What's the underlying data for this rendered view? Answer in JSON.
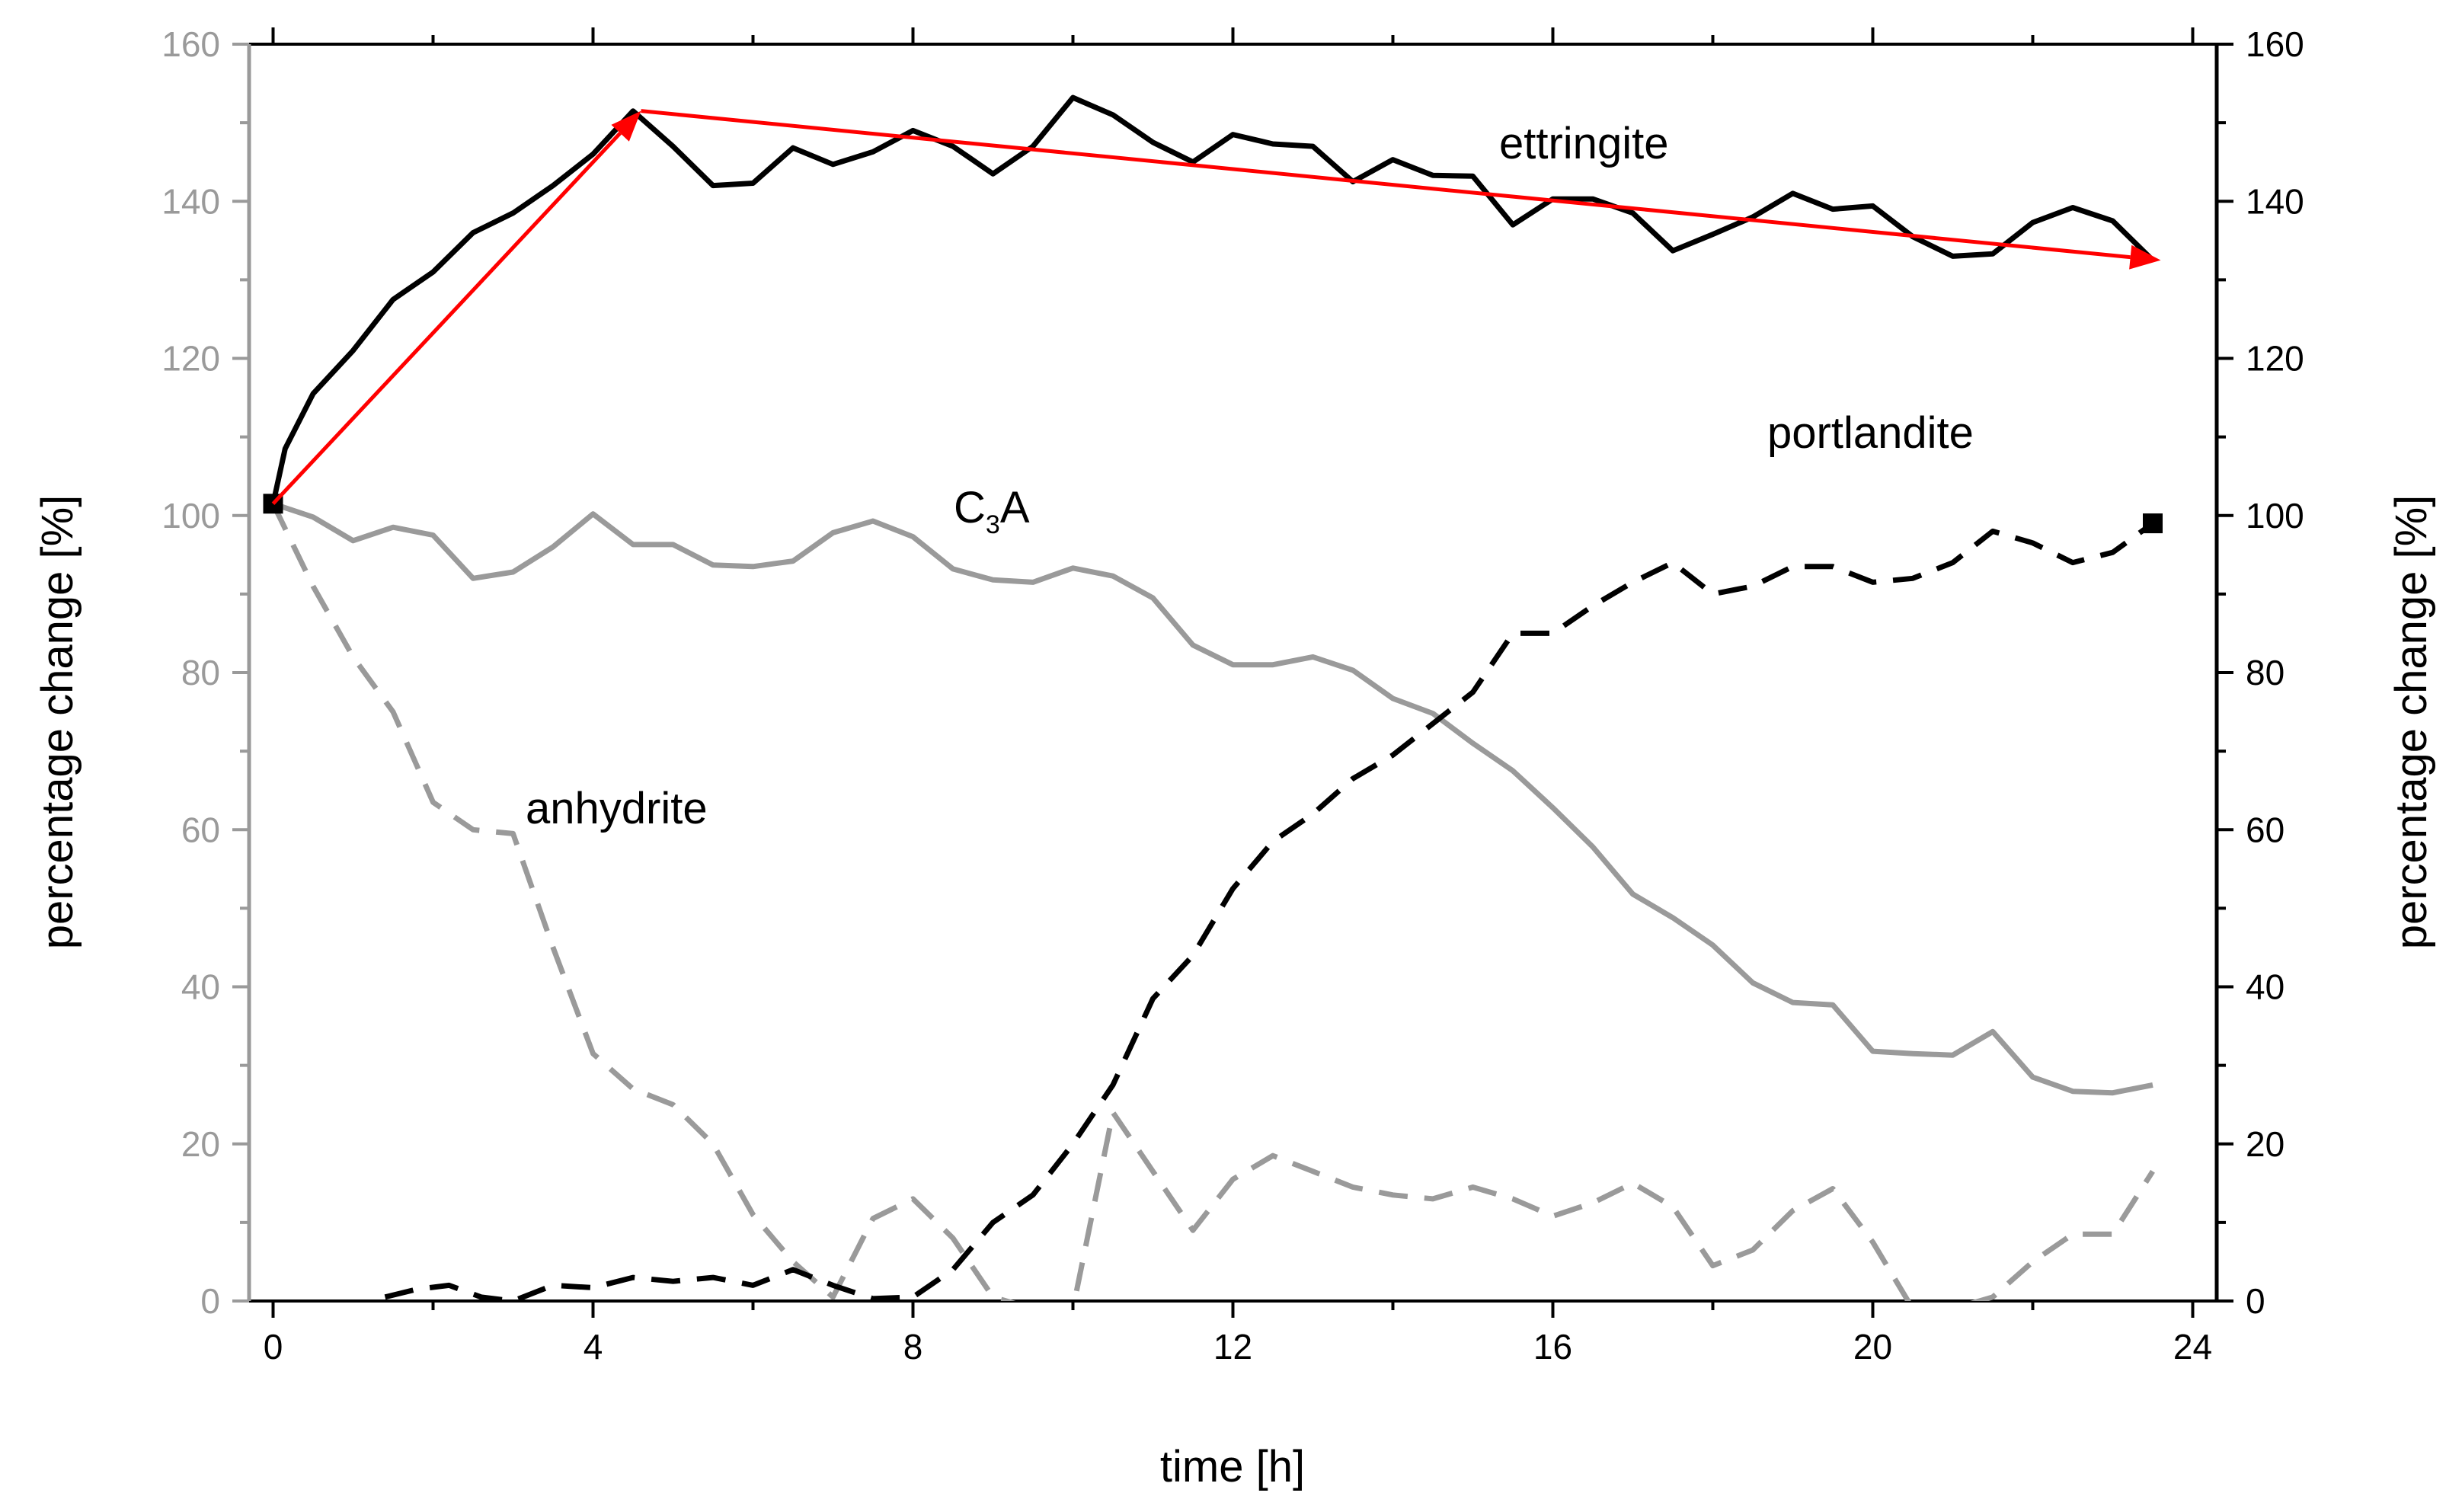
{
  "chart_data": {
    "type": "line",
    "title": "",
    "xlabel": "time [h]",
    "ylabel_left": "percentage change [%]",
    "ylabel_right": "percentage change [%]",
    "xlim": [
      -0.3,
      24.3
    ],
    "ylim_left": [
      0,
      160
    ],
    "ylim_right": [
      0,
      160
    ],
    "x_ticks": [
      0,
      4,
      8,
      12,
      16,
      20,
      24
    ],
    "x_tick_labels": [
      "0",
      "4",
      "8",
      "12",
      "16",
      "20",
      "24"
    ],
    "y_ticks_left": [
      0,
      20,
      40,
      60,
      80,
      100,
      120,
      140,
      160
    ],
    "y_tick_labels_left": [
      "0",
      "20",
      "40",
      "60",
      "80",
      "100",
      "120",
      "140",
      "160"
    ],
    "y_ticks_right": [
      0,
      20,
      40,
      60,
      80,
      100,
      120,
      140,
      160
    ],
    "y_tick_labels_right": [
      "0",
      "20",
      "40",
      "60",
      "80",
      "100",
      "120",
      "140",
      "160"
    ],
    "grid": false,
    "colors": {
      "left_axis": "#9a9a9a",
      "right_axis": "#000000",
      "ettringite": "#000000",
      "c3a": "#9a9a9a",
      "anhydrite": "#9a9a9a",
      "portlandite": "#000000",
      "trend_arrow": "#ff0000"
    },
    "series": [
      {
        "name": "ettringite",
        "axis": "right",
        "style": "solid",
        "x": [
          0,
          0.15,
          0.5,
          1,
          1.5,
          2,
          2.5,
          3,
          3.5,
          4,
          4.5,
          5,
          5.5,
          6,
          6.5,
          7,
          7.5,
          8,
          8.5,
          9,
          9.5,
          10,
          10.5,
          11,
          11.5,
          12,
          12.5,
          13,
          13.5,
          14,
          14.5,
          15,
          15.5,
          16,
          16.5,
          17,
          17.5,
          18,
          18.5,
          19,
          19.5,
          20,
          20.5,
          21,
          21.5,
          22,
          22.5,
          23,
          23.5
        ],
        "values": [
          101.5,
          108.5,
          115.5,
          121,
          127.5,
          131,
          136,
          138.5,
          142,
          146,
          151.5,
          147,
          142,
          142.3,
          146.8,
          144.7,
          146.3,
          149,
          147,
          143.5,
          147,
          153.2,
          151,
          147.5,
          145,
          148.5,
          147.3,
          147,
          142.5,
          145.3,
          143.3,
          143.2,
          137,
          140.3,
          140.3,
          138.5,
          133.7,
          135.8,
          138,
          141,
          139,
          139.4,
          135.5,
          133,
          133.3,
          137.3,
          139.2,
          137.5,
          132.5
        ]
      },
      {
        "name": "C3A",
        "label_main": "C",
        "label_sub": "3",
        "label_tail": "A",
        "axis": "left",
        "style": "solid",
        "x": [
          0,
          0.5,
          1,
          1.5,
          2,
          2.5,
          3,
          3.5,
          4,
          4.5,
          5,
          5.5,
          6,
          6.5,
          7,
          7.5,
          8,
          8.5,
          9,
          9.5,
          10,
          10.5,
          11,
          11.5,
          12,
          12.5,
          13,
          13.5,
          14,
          14.5,
          15,
          15.5,
          16,
          16.5,
          17,
          17.5,
          18,
          18.5,
          19,
          19.5,
          20,
          20.5,
          21,
          21.5,
          22,
          22.5,
          23,
          23.5
        ],
        "values": [
          101.5,
          99.8,
          96.8,
          98.5,
          97.5,
          92,
          92.8,
          96,
          100.2,
          96.3,
          96.3,
          93.7,
          93.5,
          94.2,
          97.8,
          99.3,
          97.3,
          93.2,
          91.8,
          91.5,
          93.3,
          92.3,
          89.5,
          83.5,
          81,
          81,
          82,
          80.3,
          76.7,
          74.8,
          71,
          67.5,
          62.8,
          57.8,
          51.8,
          48.8,
          45.3,
          40.5,
          38,
          37.7,
          31.8,
          31.5,
          31.3,
          34.3,
          28.5,
          26.7,
          26.5,
          27.5
        ]
      },
      {
        "name": "anhydrite",
        "axis": "left",
        "style": "dashed",
        "x": [
          0,
          0.5,
          1,
          1.5,
          2,
          2.5,
          3,
          3.5,
          4,
          4.5,
          5,
          5.5,
          6,
          6.5,
          7,
          7.5,
          8,
          8.5,
          9,
          9.5,
          10,
          10.5,
          11,
          11.5,
          12,
          12.5,
          13,
          13.5,
          14,
          14.5,
          15,
          15.5,
          16,
          16.5,
          17,
          17.5,
          18,
          18.5,
          19,
          19.5,
          20,
          20.5,
          21,
          21.5,
          22,
          22.5,
          23,
          23.5
        ],
        "values": [
          101.5,
          91,
          82,
          75,
          63.5,
          60,
          59.5,
          45,
          31.5,
          27,
          25,
          20,
          11,
          5,
          0.5,
          10.5,
          13,
          8,
          0.5,
          -1,
          -1,
          24,
          16.5,
          9,
          15.5,
          18.5,
          16.5,
          14.5,
          13.5,
          13,
          14.5,
          13,
          10.8,
          12.5,
          15,
          12,
          4.5,
          6.5,
          11.5,
          14.3,
          7.5,
          -1,
          -1,
          0.5,
          5,
          8.5,
          8.5,
          16.5
        ]
      },
      {
        "name": "portlandite",
        "axis": "right",
        "style": "dashed",
        "x": [
          1.4,
          1.8,
          2.2,
          2.6,
          3,
          3.5,
          4,
          4.5,
          5,
          5.5,
          6,
          6.5,
          7,
          7.5,
          8,
          8.5,
          9,
          9.5,
          10,
          10.5,
          11,
          11.5,
          12,
          12.5,
          13,
          13.5,
          14,
          14.5,
          15,
          15.5,
          16,
          16.5,
          17,
          17.5,
          18,
          18.5,
          19,
          19.5,
          20,
          20.5,
          21,
          21.5,
          22,
          22.5,
          23,
          23.5
        ],
        "values": [
          0.5,
          1.5,
          2,
          0.5,
          0,
          2,
          1.7,
          3,
          2.5,
          3,
          2,
          4,
          2,
          0.3,
          0.5,
          4,
          10,
          13.5,
          20,
          27.5,
          38.5,
          44,
          52.5,
          58.5,
          62,
          66.5,
          69.5,
          73.5,
          77.5,
          85,
          85,
          88.5,
          91.5,
          94,
          90,
          91,
          93.5,
          93.5,
          91.5,
          92,
          94,
          98,
          96.5,
          94,
          95.3,
          99
        ]
      }
    ],
    "end_markers": [
      {
        "series": "ettringite",
        "x": 0,
        "y": 101.5,
        "marker": "square"
      },
      {
        "series": "portlandite",
        "x": 23.5,
        "y": 99,
        "marker": "square"
      }
    ],
    "trend_arrows": [
      {
        "from": [
          0,
          101.5
        ],
        "to": [
          4.6,
          151.5
        ]
      },
      {
        "from": [
          4.6,
          151.5
        ],
        "to": [
          23.6,
          132.5
        ]
      }
    ],
    "annotations": [
      {
        "text": "ettringite",
        "series": "ettringite"
      },
      {
        "text": "C3A",
        "series": "C3A"
      },
      {
        "text": "anhydrite",
        "series": "anhydrite"
      },
      {
        "text": "portlandite",
        "series": "portlandite"
      }
    ]
  }
}
